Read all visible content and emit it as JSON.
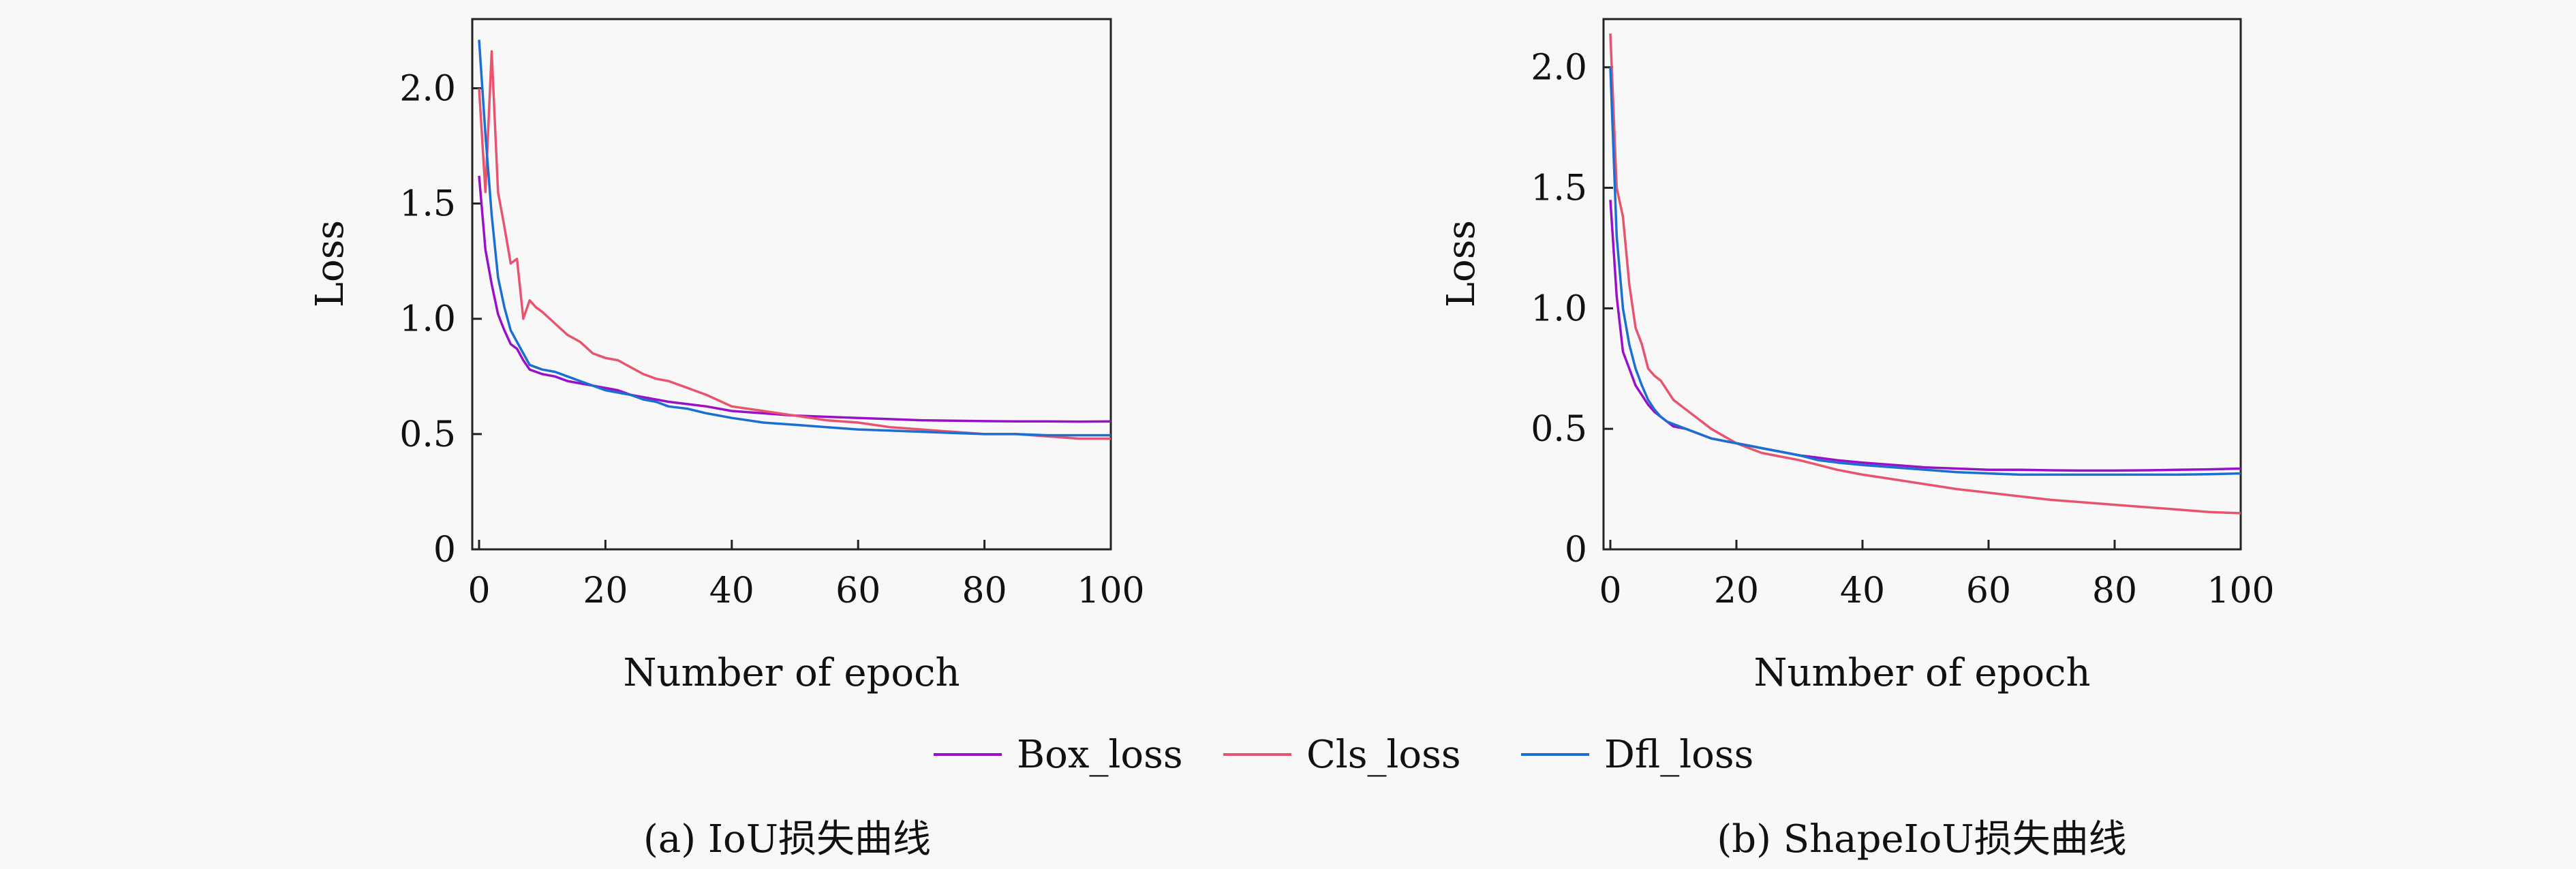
{
  "chart_data": [
    {
      "type": "line",
      "xlabel": "Number of epoch",
      "ylabel": "Loss",
      "caption": "(a) IoU损失曲线",
      "xlim": [
        0,
        100
      ],
      "ylim": [
        0,
        2.3
      ],
      "xticks": [
        0,
        20,
        40,
        60,
        80,
        100
      ],
      "xtick_labels": [
        "0",
        "20",
        "40",
        "60",
        "80",
        "100"
      ],
      "yticks": [
        0,
        0.5,
        1.0,
        1.5,
        2.0
      ],
      "ytick_labels": [
        "0",
        "0.5",
        "1.0",
        "1.5",
        "2.0"
      ],
      "x": [
        0,
        1,
        2,
        3,
        4,
        5,
        6,
        7,
        8,
        9,
        10,
        12,
        14,
        16,
        18,
        20,
        22,
        24,
        26,
        28,
        30,
        33,
        36,
        40,
        45,
        50,
        55,
        60,
        65,
        70,
        75,
        80,
        85,
        90,
        95,
        100
      ],
      "series": [
        {
          "name": "Box_loss",
          "color": "#9a10c8",
          "values": [
            1.62,
            1.3,
            1.15,
            1.02,
            0.95,
            0.89,
            0.87,
            0.82,
            0.78,
            0.77,
            0.76,
            0.75,
            0.73,
            0.72,
            0.71,
            0.7,
            0.69,
            0.67,
            0.66,
            0.65,
            0.64,
            0.63,
            0.62,
            0.6,
            0.59,
            0.58,
            0.575,
            0.57,
            0.565,
            0.56,
            0.558,
            0.556,
            0.555,
            0.555,
            0.554,
            0.555
          ]
        },
        {
          "name": "Cls_loss",
          "color": "#e8546e",
          "values": [
            2.0,
            1.55,
            2.16,
            1.55,
            1.4,
            1.24,
            1.26,
            1.0,
            1.08,
            1.05,
            1.03,
            0.98,
            0.93,
            0.9,
            0.85,
            0.83,
            0.82,
            0.79,
            0.76,
            0.74,
            0.73,
            0.7,
            0.67,
            0.62,
            0.6,
            0.58,
            0.56,
            0.55,
            0.53,
            0.52,
            0.51,
            0.5,
            0.5,
            0.49,
            0.48,
            0.48
          ]
        },
        {
          "name": "Dfl_loss",
          "color": "#1a6fd1",
          "values": [
            2.21,
            1.8,
            1.45,
            1.18,
            1.05,
            0.95,
            0.9,
            0.85,
            0.8,
            0.79,
            0.78,
            0.77,
            0.75,
            0.73,
            0.71,
            0.69,
            0.68,
            0.67,
            0.65,
            0.64,
            0.62,
            0.61,
            0.59,
            0.57,
            0.55,
            0.54,
            0.53,
            0.52,
            0.515,
            0.51,
            0.505,
            0.5,
            0.5,
            0.495,
            0.495,
            0.495
          ]
        }
      ]
    },
    {
      "type": "line",
      "xlabel": "Number of epoch",
      "ylabel": "Loss",
      "caption": "(b) ShapeIoU损失曲线",
      "xlim": [
        0,
        100
      ],
      "ylim": [
        0,
        2.2
      ],
      "xticks": [
        0,
        20,
        40,
        60,
        80,
        100
      ],
      "xtick_labels": [
        "0",
        "20",
        "40",
        "60",
        "80",
        "100"
      ],
      "yticks": [
        0,
        0.5,
        1.0,
        1.5,
        2.0
      ],
      "ytick_labels": [
        "0",
        "0.5",
        "1.0",
        "1.5",
        "2.0"
      ],
      "x": [
        0,
        1,
        2,
        3,
        4,
        5,
        6,
        7,
        8,
        9,
        10,
        12,
        14,
        16,
        18,
        20,
        22,
        24,
        26,
        28,
        30,
        33,
        36,
        40,
        45,
        50,
        55,
        60,
        65,
        70,
        75,
        80,
        85,
        90,
        95,
        100
      ],
      "series": [
        {
          "name": "Box_loss",
          "color": "#9a10c8",
          "values": [
            1.45,
            1.05,
            0.82,
            0.75,
            0.68,
            0.64,
            0.6,
            0.57,
            0.55,
            0.53,
            0.51,
            0.5,
            0.48,
            0.46,
            0.45,
            0.44,
            0.43,
            0.42,
            0.41,
            0.4,
            0.39,
            0.38,
            0.37,
            0.36,
            0.35,
            0.34,
            0.335,
            0.33,
            0.33,
            0.328,
            0.327,
            0.327,
            0.328,
            0.33,
            0.332,
            0.335
          ]
        },
        {
          "name": "Cls_loss",
          "color": "#e8546e",
          "values": [
            2.14,
            1.5,
            1.38,
            1.1,
            0.92,
            0.85,
            0.75,
            0.72,
            0.7,
            0.66,
            0.62,
            0.58,
            0.54,
            0.5,
            0.47,
            0.44,
            0.42,
            0.4,
            0.39,
            0.38,
            0.37,
            0.35,
            0.33,
            0.31,
            0.29,
            0.27,
            0.25,
            0.235,
            0.22,
            0.205,
            0.195,
            0.185,
            0.175,
            0.165,
            0.155,
            0.15
          ]
        },
        {
          "name": "Dfl_loss",
          "color": "#1a6fd1",
          "values": [
            2.0,
            1.3,
            1.0,
            0.85,
            0.75,
            0.68,
            0.62,
            0.58,
            0.55,
            0.53,
            0.52,
            0.5,
            0.48,
            0.46,
            0.45,
            0.44,
            0.43,
            0.42,
            0.41,
            0.4,
            0.39,
            0.37,
            0.36,
            0.35,
            0.34,
            0.33,
            0.32,
            0.315,
            0.31,
            0.31,
            0.31,
            0.31,
            0.31,
            0.31,
            0.312,
            0.315
          ]
        }
      ]
    }
  ]
}
